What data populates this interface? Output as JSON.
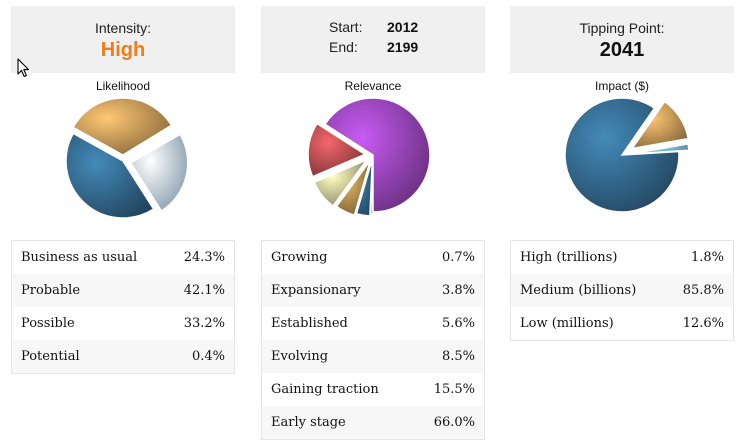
{
  "intensity": {
    "label": "Intensity:",
    "value": "High"
  },
  "period": {
    "start_label": "Start:",
    "start_value": "2012",
    "end_label": "End:",
    "end_value": "2199"
  },
  "tipping": {
    "label": "Tipping Point:",
    "value": "2041"
  },
  "likelihood": {
    "title": "Likelihood",
    "rows": [
      {
        "label": "Business as usual",
        "pct": "24.3%"
      },
      {
        "label": "Probable",
        "pct": "42.1%"
      },
      {
        "label": "Possible",
        "pct": "33.2%"
      },
      {
        "label": "Potential",
        "pct": "0.4%"
      }
    ]
  },
  "relevance": {
    "title": "Relevance",
    "rows": [
      {
        "label": "Growing",
        "pct": "0.7%"
      },
      {
        "label": "Expansionary",
        "pct": "3.8%"
      },
      {
        "label": "Established",
        "pct": "5.6%"
      },
      {
        "label": "Evolving",
        "pct": "8.5%"
      },
      {
        "label": "Gaining traction",
        "pct": "15.5%"
      },
      {
        "label": "Early stage",
        "pct": "66.0%"
      }
    ]
  },
  "impact": {
    "title": "Impact ($)",
    "rows": [
      {
        "label": "High (trillions)",
        "pct": "1.8%"
      },
      {
        "label": "Medium (billions)",
        "pct": "85.8%"
      },
      {
        "label": "Low (millions)",
        "pct": "12.6%"
      }
    ]
  },
  "chart_data": [
    {
      "type": "pie",
      "title": "Likelihood",
      "categories": [
        "Business as usual",
        "Probable",
        "Possible",
        "Potential"
      ],
      "values": [
        24.3,
        42.1,
        33.2,
        0.4
      ],
      "colors": [
        "#b3d0e6",
        "#2f5f80",
        "#b58a4f",
        "#d9d9d9"
      ]
    },
    {
      "type": "pie",
      "title": "Relevance",
      "categories": [
        "Growing",
        "Expansionary",
        "Established",
        "Evolving",
        "Gaining traction",
        "Early stage"
      ],
      "values": [
        0.7,
        3.8,
        5.6,
        8.5,
        15.5,
        66.0
      ],
      "colors": [
        "#c9c9c9",
        "#2c5c7e",
        "#a08045",
        "#b9b486",
        "#a8464a",
        "#8a3fa8"
      ]
    },
    {
      "type": "pie",
      "title": "Impact ($)",
      "categories": [
        "High (trillions)",
        "Medium (billions)",
        "Low (millions)"
      ],
      "values": [
        1.8,
        85.8,
        12.6
      ],
      "colors": [
        "#6aa6c9",
        "#2f5f80",
        "#b58a4f"
      ]
    }
  ]
}
